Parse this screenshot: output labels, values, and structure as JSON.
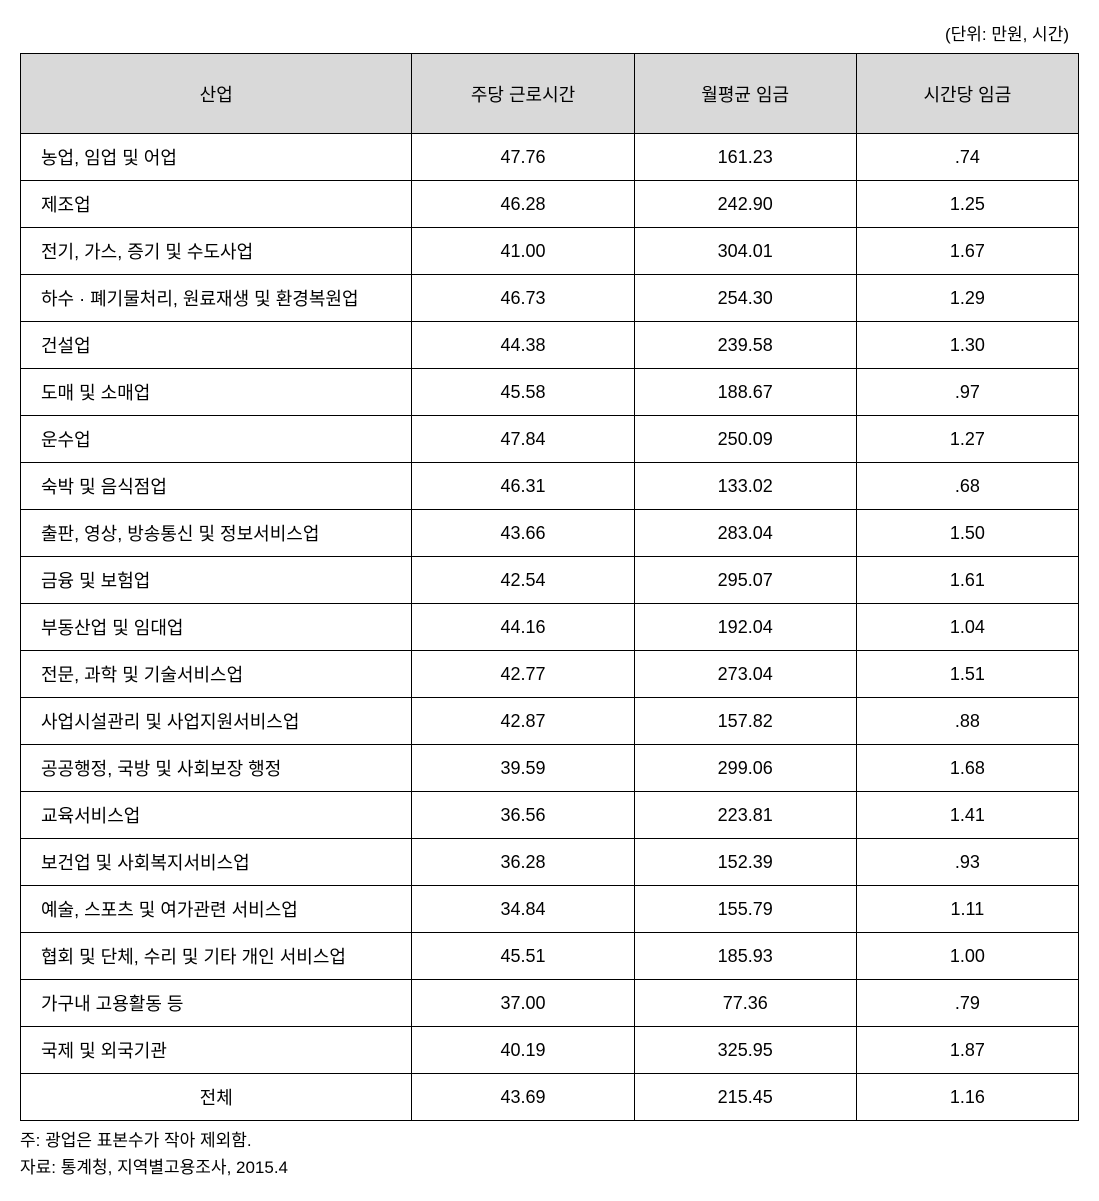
{
  "unit_label": "(단위: 만원, 시간)",
  "table": {
    "headers": {
      "industry": "산업",
      "weekly_hours": "주당 근로시간",
      "monthly_wage": "월평균 임금",
      "hourly_wage": "시간당 임금"
    },
    "rows": [
      {
        "label": "농업, 임업 및 어업",
        "weekly": "47.76",
        "monthly": "161.23",
        "hourly": ".74"
      },
      {
        "label": "제조업",
        "weekly": "46.28",
        "monthly": "242.90",
        "hourly": "1.25"
      },
      {
        "label": "전기, 가스, 증기 및 수도사업",
        "weekly": "41.00",
        "monthly": "304.01",
        "hourly": "1.67"
      },
      {
        "label": "하수 · 폐기물처리, 원료재생 및 환경복원업",
        "weekly": "46.73",
        "monthly": "254.30",
        "hourly": "1.29"
      },
      {
        "label": "건설업",
        "weekly": "44.38",
        "monthly": "239.58",
        "hourly": "1.30"
      },
      {
        "label": "도매 및 소매업",
        "weekly": "45.58",
        "monthly": "188.67",
        "hourly": ".97"
      },
      {
        "label": "운수업",
        "weekly": "47.84",
        "monthly": "250.09",
        "hourly": "1.27"
      },
      {
        "label": "숙박 및 음식점업",
        "weekly": "46.31",
        "monthly": "133.02",
        "hourly": ".68"
      },
      {
        "label": "출판, 영상, 방송통신 및 정보서비스업",
        "weekly": "43.66",
        "monthly": "283.04",
        "hourly": "1.50"
      },
      {
        "label": "금융 및 보험업",
        "weekly": "42.54",
        "monthly": "295.07",
        "hourly": "1.61"
      },
      {
        "label": "부동산업 및 임대업",
        "weekly": "44.16",
        "monthly": "192.04",
        "hourly": "1.04"
      },
      {
        "label": "전문, 과학 및 기술서비스업",
        "weekly": "42.77",
        "monthly": "273.04",
        "hourly": "1.51"
      },
      {
        "label": "사업시설관리 및 사업지원서비스업",
        "weekly": "42.87",
        "monthly": "157.82",
        "hourly": ".88"
      },
      {
        "label": "공공행정, 국방 및 사회보장 행정",
        "weekly": "39.59",
        "monthly": "299.06",
        "hourly": "1.68"
      },
      {
        "label": "교육서비스업",
        "weekly": "36.56",
        "monthly": "223.81",
        "hourly": "1.41"
      },
      {
        "label": "보건업 및 사회복지서비스업",
        "weekly": "36.28",
        "monthly": "152.39",
        "hourly": ".93"
      },
      {
        "label": "예술, 스포츠 및 여가관련 서비스업",
        "weekly": "34.84",
        "monthly": "155.79",
        "hourly": "1.11"
      },
      {
        "label": "협회 및 단체, 수리 및 기타 개인 서비스업",
        "weekly": "45.51",
        "monthly": "185.93",
        "hourly": "1.00"
      },
      {
        "label": "가구내 고용활동 등",
        "weekly": "37.00",
        "monthly": "77.36",
        "hourly": ".79"
      },
      {
        "label": "국제 및 외국기관",
        "weekly": "40.19",
        "monthly": "325.95",
        "hourly": "1.87"
      }
    ],
    "total": {
      "label": "전체",
      "weekly": "43.69",
      "monthly": "215.45",
      "hourly": "1.16"
    }
  },
  "footnotes": {
    "note": "주: 광업은 표본수가 작아 제외함.",
    "source": "자료: 통계청, 지역별고용조사, 2015.4"
  },
  "styling": {
    "header_bg": "#d9d9d9",
    "border_color": "#000000",
    "background_color": "#ffffff",
    "text_color": "#000000",
    "font_family": "Malgun Gothic",
    "base_fontsize": 18,
    "header_row_height": 80,
    "data_row_height": 40,
    "col_widths_pct": [
      37,
      21,
      21,
      21
    ]
  }
}
